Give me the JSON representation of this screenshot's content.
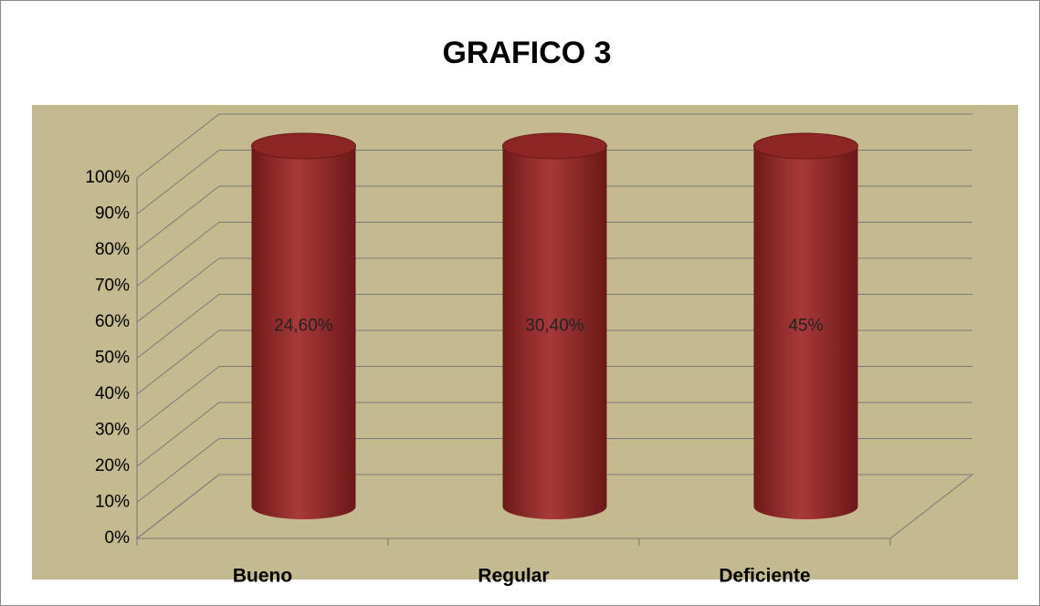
{
  "chart_data": {
    "type": "bar",
    "stacking": "percent",
    "title": "GRAFICO 3",
    "categories": [
      "Bueno",
      "Regular",
      "Deficiente"
    ],
    "series": [
      {
        "name": null,
        "color": "#9b3232",
        "values": [
          24.6,
          30.4,
          45
        ],
        "value_labels": [
          "24,60%",
          "30,40%",
          "45%"
        ]
      }
    ],
    "ylim": [
      0,
      100
    ],
    "yticks": [
      {
        "value": 0,
        "label": "0%"
      },
      {
        "value": 10,
        "label": "10%"
      },
      {
        "value": 20,
        "label": "20%"
      },
      {
        "value": 30,
        "label": "30%"
      },
      {
        "value": 40,
        "label": "40%"
      },
      {
        "value": 50,
        "label": "50%"
      },
      {
        "value": 60,
        "label": "60%"
      },
      {
        "value": 70,
        "label": "70%"
      },
      {
        "value": 80,
        "label": "80%"
      },
      {
        "value": 90,
        "label": "90%"
      },
      {
        "value": 100,
        "label": "100%"
      }
    ],
    "grid": true
  }
}
